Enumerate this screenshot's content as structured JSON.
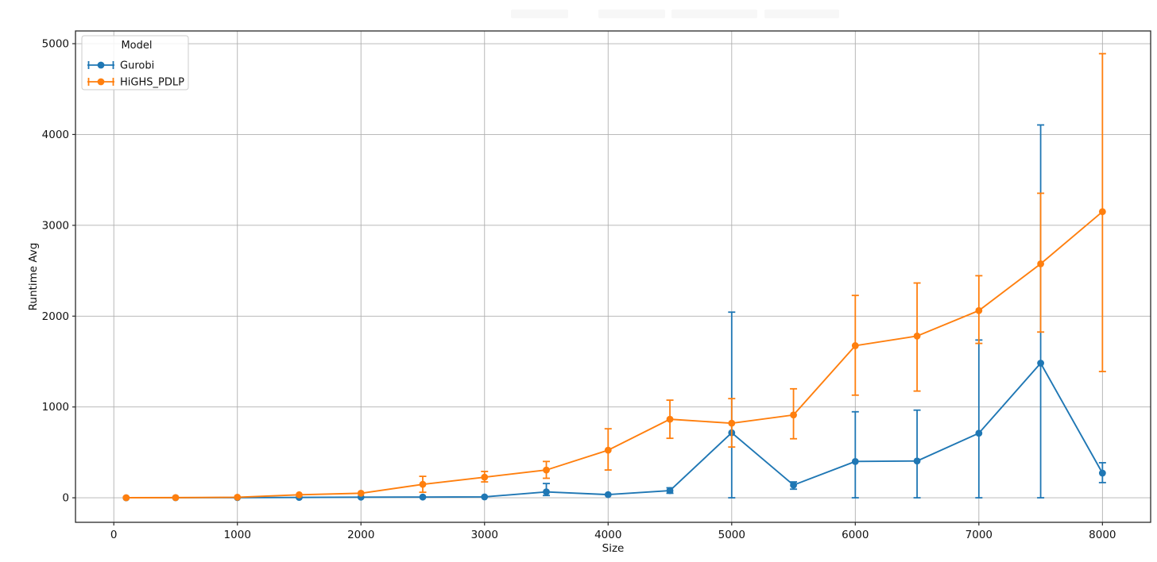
{
  "chart_data": {
    "type": "line",
    "title": "",
    "xlabel": "Size",
    "ylabel": "Runtime Avg",
    "grid": true,
    "xlim": [
      -310,
      8390
    ],
    "ylim": [
      -270,
      5140
    ],
    "xticks": [
      0,
      1000,
      2000,
      3000,
      4000,
      5000,
      6000,
      7000,
      8000
    ],
    "yticks": [
      0,
      1000,
      2000,
      3000,
      4000,
      5000
    ],
    "x": [
      100,
      500,
      1000,
      1500,
      2000,
      2500,
      3000,
      3500,
      4000,
      4500,
      5000,
      5500,
      6000,
      6500,
      7000,
      7500,
      8000
    ],
    "series": [
      {
        "name": "Gurobi",
        "color": "#1f77b4",
        "values": [
          0,
          1,
          2,
          4,
          7,
          8,
          10,
          65,
          35,
          79,
          716,
          140,
          400,
          405,
          711,
          1482,
          272
        ],
        "err_low": [
          0,
          1,
          2,
          4,
          7,
          8,
          10,
          25,
          35,
          50,
          0,
          95,
          0,
          0,
          0,
          0,
          167
        ],
        "err_high": [
          0,
          1,
          2,
          4,
          7,
          8,
          10,
          157,
          35,
          110,
          2044,
          175,
          947,
          965,
          1737,
          4105,
          386
        ]
      },
      {
        "name": "HiGHS_PDLP",
        "color": "#ff7f0e",
        "values": [
          1,
          2,
          6,
          33,
          50,
          148,
          227,
          306,
          524,
          865,
          821,
          912,
          1675,
          1781,
          2061,
          2576,
          3150
        ],
        "err_low": [
          1,
          2,
          6,
          33,
          50,
          61,
          175,
          215,
          306,
          655,
          559,
          650,
          1130,
          1175,
          1700,
          1825,
          1390
        ],
        "err_high": [
          1,
          2,
          6,
          33,
          50,
          236,
          290,
          400,
          760,
          1075,
          1092,
          1200,
          2228,
          2365,
          2445,
          3353,
          4890
        ]
      }
    ],
    "legend": {
      "title": "Model",
      "position": "upper left"
    },
    "colors": {
      "grid": "#b0b0b0",
      "spine": "#2a2a2a",
      "tick_label": "#111111",
      "legend_border": "#cccccc",
      "background": "#ffffff"
    }
  }
}
